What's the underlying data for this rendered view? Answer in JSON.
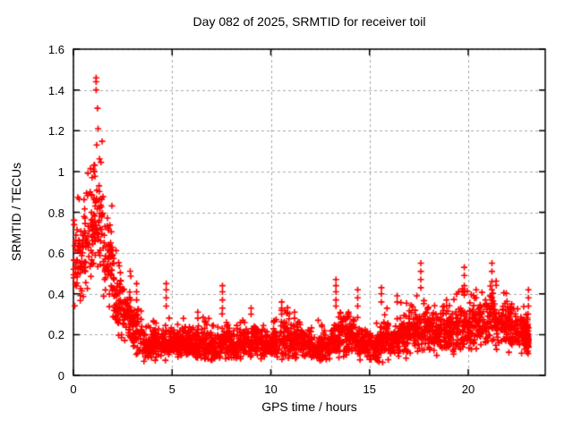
{
  "chart_data": {
    "type": "scatter",
    "title": "Day 082 of 2025, SRMTID for receiver toil",
    "xlabel": "GPS time / hours",
    "ylabel": "SRMTID / TECUs",
    "xlim": [
      0,
      23.9
    ],
    "ylim": [
      0,
      1.6
    ],
    "grid": true,
    "legend": "none",
    "xticks": {
      "values": [
        0,
        5,
        10,
        15,
        20
      ],
      "labels": [
        "0",
        "5",
        "10",
        "15",
        "20"
      ]
    },
    "yticks": {
      "values": [
        0,
        0.2,
        0.4,
        0.6,
        0.8,
        1.0,
        1.2,
        1.4,
        1.6
      ],
      "labels": [
        "0",
        "0.2",
        "0.4",
        "0.6",
        "0.8",
        "1",
        "1.2",
        "1.4",
        "1.6"
      ]
    },
    "marker": {
      "shape": "plus",
      "size": 7,
      "stroke": 1.6
    },
    "colors": {
      "marker": "#ff0000",
      "grid": "#a8a8a8",
      "frame": "#000000",
      "background": "#ffffff",
      "text": "#000000"
    },
    "series": [
      {
        "name": "SRMTID",
        "seed": 2025082,
        "bin_width": 0.5,
        "points_per_bin": 58,
        "x_end": 23.05,
        "bins": [
          [
            0.0,
            0.55,
            0.22
          ],
          [
            0.5,
            0.65,
            0.25
          ],
          [
            1.0,
            0.78,
            0.3
          ],
          [
            1.5,
            0.52,
            0.25
          ],
          [
            2.0,
            0.36,
            0.2
          ],
          [
            2.5,
            0.3,
            0.15
          ],
          [
            3.0,
            0.21,
            0.12
          ],
          [
            3.5,
            0.13,
            0.08
          ],
          [
            4.0,
            0.15,
            0.08
          ],
          [
            4.5,
            0.16,
            0.09
          ],
          [
            5.0,
            0.15,
            0.07
          ],
          [
            5.5,
            0.16,
            0.08
          ],
          [
            6.0,
            0.14,
            0.07
          ],
          [
            6.5,
            0.15,
            0.09
          ],
          [
            7.0,
            0.14,
            0.07
          ],
          [
            7.5,
            0.17,
            0.1
          ],
          [
            8.0,
            0.15,
            0.08
          ],
          [
            8.5,
            0.16,
            0.08
          ],
          [
            9.0,
            0.17,
            0.09
          ],
          [
            9.5,
            0.15,
            0.08
          ],
          [
            10.0,
            0.16,
            0.09
          ],
          [
            10.5,
            0.18,
            0.11
          ],
          [
            11.0,
            0.17,
            0.1
          ],
          [
            11.5,
            0.16,
            0.09
          ],
          [
            12.0,
            0.13,
            0.07
          ],
          [
            12.5,
            0.14,
            0.08
          ],
          [
            13.0,
            0.17,
            0.1
          ],
          [
            13.5,
            0.2,
            0.13
          ],
          [
            14.0,
            0.18,
            0.11
          ],
          [
            14.5,
            0.15,
            0.08
          ],
          [
            15.0,
            0.14,
            0.08
          ],
          [
            15.5,
            0.17,
            0.11
          ],
          [
            16.0,
            0.16,
            0.09
          ],
          [
            16.5,
            0.2,
            0.12
          ],
          [
            17.0,
            0.22,
            0.13
          ],
          [
            17.5,
            0.22,
            0.12
          ],
          [
            18.0,
            0.2,
            0.11
          ],
          [
            18.5,
            0.21,
            0.11
          ],
          [
            19.0,
            0.22,
            0.12
          ],
          [
            19.5,
            0.24,
            0.13
          ],
          [
            20.0,
            0.23,
            0.12
          ],
          [
            20.5,
            0.25,
            0.13
          ],
          [
            21.0,
            0.26,
            0.14
          ],
          [
            21.5,
            0.24,
            0.12
          ],
          [
            22.0,
            0.22,
            0.12
          ],
          [
            22.5,
            0.2,
            0.11
          ],
          [
            23.0,
            0.17,
            0.09
          ]
        ],
        "outliers": [
          [
            1.15,
            1.46
          ],
          [
            1.15,
            1.44
          ],
          [
            1.15,
            1.4
          ],
          [
            1.22,
            1.31
          ],
          [
            1.25,
            1.21
          ],
          [
            1.18,
            1.13
          ],
          [
            1.08,
            1.03
          ],
          [
            1.05,
            1.0
          ],
          [
            0.95,
            0.97
          ],
          [
            1.3,
            0.93
          ],
          [
            0.85,
            0.9
          ],
          [
            3.2,
            0.45
          ],
          [
            3.2,
            0.41
          ],
          [
            3.2,
            0.37
          ],
          [
            4.7,
            0.45
          ],
          [
            4.7,
            0.42
          ],
          [
            4.7,
            0.38
          ],
          [
            4.7,
            0.34
          ],
          [
            6.3,
            0.31
          ],
          [
            6.3,
            0.28
          ],
          [
            7.55,
            0.44
          ],
          [
            7.55,
            0.41
          ],
          [
            7.55,
            0.37
          ],
          [
            7.55,
            0.33
          ],
          [
            9.0,
            0.33
          ],
          [
            9.0,
            0.3
          ],
          [
            10.55,
            0.36
          ],
          [
            10.55,
            0.33
          ],
          [
            10.55,
            0.3
          ],
          [
            11.2,
            0.31
          ],
          [
            11.2,
            0.28
          ],
          [
            12.4,
            0.27
          ],
          [
            13.3,
            0.47
          ],
          [
            13.3,
            0.44
          ],
          [
            13.3,
            0.41
          ],
          [
            13.3,
            0.37
          ],
          [
            13.3,
            0.34
          ],
          [
            14.4,
            0.42
          ],
          [
            14.4,
            0.38
          ],
          [
            14.4,
            0.34
          ],
          [
            15.6,
            0.43
          ],
          [
            15.6,
            0.4
          ],
          [
            15.6,
            0.36
          ],
          [
            16.4,
            0.39
          ],
          [
            16.4,
            0.36
          ],
          [
            17.6,
            0.55
          ],
          [
            17.6,
            0.51
          ],
          [
            17.6,
            0.47
          ],
          [
            17.6,
            0.43
          ],
          [
            18.9,
            0.37
          ],
          [
            18.9,
            0.34
          ],
          [
            19.8,
            0.53
          ],
          [
            19.8,
            0.49
          ],
          [
            19.8,
            0.44
          ],
          [
            20.4,
            0.42
          ],
          [
            20.4,
            0.38
          ],
          [
            21.2,
            0.55
          ],
          [
            21.2,
            0.51
          ],
          [
            21.2,
            0.46
          ],
          [
            21.2,
            0.42
          ],
          [
            21.2,
            0.38
          ],
          [
            22.2,
            0.35
          ],
          [
            22.2,
            0.32
          ],
          [
            23.05,
            0.42
          ],
          [
            23.05,
            0.38
          ],
          [
            23.05,
            0.34
          ]
        ]
      }
    ]
  }
}
